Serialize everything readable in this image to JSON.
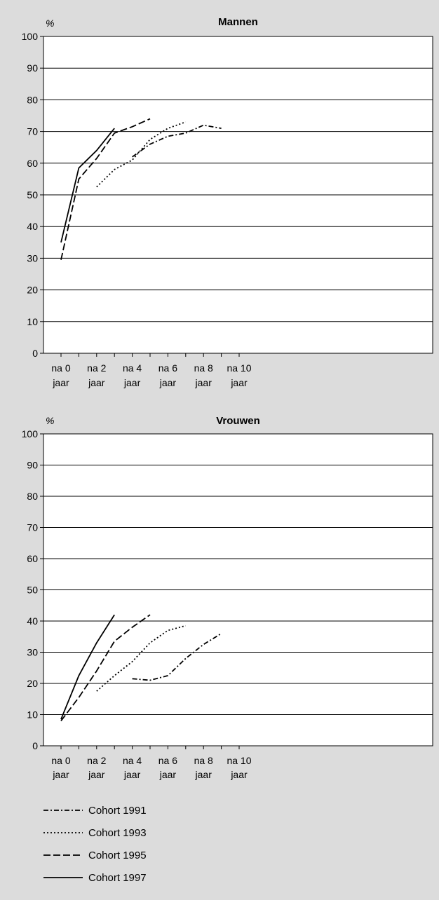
{
  "chart_data": [
    {
      "type": "line",
      "title": "Mannen",
      "ylabel": "%",
      "ylim": [
        0,
        100
      ],
      "yticks": [
        0,
        10,
        20,
        30,
        40,
        50,
        60,
        70,
        80,
        90,
        100
      ],
      "x_ticks": [
        {
          "x": 0,
          "line1": "na 0",
          "line2": "jaar"
        },
        {
          "x": 2,
          "line1": "na 2",
          "line2": "jaar"
        },
        {
          "x": 4,
          "line1": "na 4",
          "line2": "jaar"
        },
        {
          "x": 6,
          "line1": "na 6",
          "line2": "jaar"
        },
        {
          "x": 8,
          "line1": "na 8",
          "line2": "jaar"
        },
        {
          "x": 10,
          "line1": "na 10",
          "line2": "jaar"
        }
      ],
      "grid": true,
      "series": [
        {
          "name": "Cohort 1991",
          "dash": "dashdot",
          "x": [
            4,
            5,
            6,
            7,
            8,
            9
          ],
          "y": [
            62,
            66,
            68.5,
            69.5,
            72,
            71
          ]
        },
        {
          "name": "Cohort 1993",
          "dash": "dotted",
          "x": [
            2,
            3,
            4,
            5,
            6,
            7
          ],
          "y": [
            52.5,
            58,
            61,
            67.5,
            71,
            73
          ]
        },
        {
          "name": "Cohort 1995",
          "dash": "dashed",
          "x": [
            0,
            1,
            2,
            3,
            4,
            5
          ],
          "y": [
            29.5,
            55,
            61.5,
            69.5,
            71.5,
            74
          ]
        },
        {
          "name": "Cohort 1997",
          "dash": "solid",
          "x": [
            0,
            1,
            2,
            3
          ],
          "y": [
            35,
            58.5,
            64,
            71
          ]
        }
      ]
    },
    {
      "type": "line",
      "title": "Vrouwen",
      "ylabel": "%",
      "ylim": [
        0,
        100
      ],
      "yticks": [
        0,
        10,
        20,
        30,
        40,
        50,
        60,
        70,
        80,
        90,
        100
      ],
      "x_ticks": [
        {
          "x": 0,
          "line1": "na 0",
          "line2": "jaar"
        },
        {
          "x": 2,
          "line1": "na 2",
          "line2": "jaar"
        },
        {
          "x": 4,
          "line1": "na 4",
          "line2": "jaar"
        },
        {
          "x": 6,
          "line1": "na 6",
          "line2": "jaar"
        },
        {
          "x": 8,
          "line1": "na 8",
          "line2": "jaar"
        },
        {
          "x": 10,
          "line1": "na 10",
          "line2": "jaar"
        }
      ],
      "grid": true,
      "series": [
        {
          "name": "Cohort 1991",
          "dash": "dashdot",
          "x": [
            4,
            5,
            6,
            7,
            8,
            9
          ],
          "y": [
            21.5,
            21,
            22.5,
            28,
            32.5,
            36
          ]
        },
        {
          "name": "Cohort 1993",
          "dash": "dotted",
          "x": [
            2,
            3,
            4,
            5,
            6,
            7
          ],
          "y": [
            17.5,
            22.5,
            27,
            33,
            37,
            38.5
          ]
        },
        {
          "name": "Cohort 1995",
          "dash": "dashed",
          "x": [
            0,
            1,
            2,
            3,
            4,
            5
          ],
          "y": [
            8,
            15.5,
            24,
            33.5,
            38,
            42
          ]
        },
        {
          "name": "Cohort 1997",
          "dash": "solid",
          "x": [
            0,
            1,
            2,
            3
          ],
          "y": [
            8.5,
            22.5,
            33,
            42
          ]
        }
      ]
    }
  ],
  "legend": [
    {
      "label": "Cohort 1991",
      "dash": "dashdot"
    },
    {
      "label": "Cohort 1993",
      "dash": "dotted"
    },
    {
      "label": "Cohort 1995",
      "dash": "dashed"
    },
    {
      "label": "Cohort 1997",
      "dash": "solid"
    }
  ]
}
